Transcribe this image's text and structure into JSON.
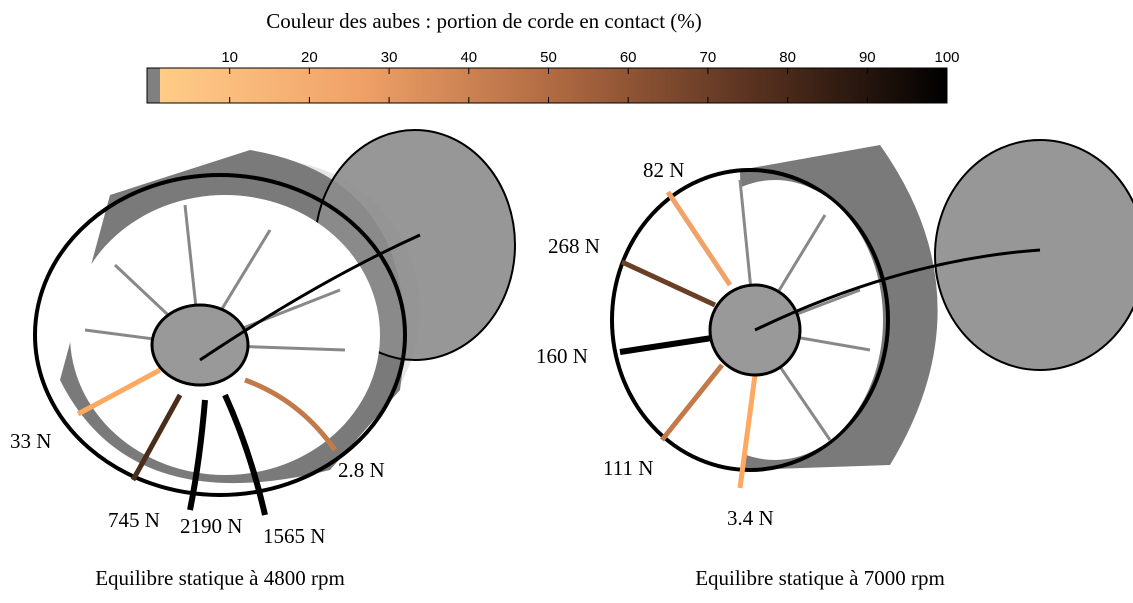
{
  "colorbar": {
    "title": "Couleur des aubes : portion de corde en contact (%)",
    "range": [
      0,
      100
    ],
    "ticks": [
      10,
      20,
      30,
      40,
      50,
      60,
      70,
      80,
      90,
      100
    ]
  },
  "panels": [
    {
      "caption": "Equilibre statique à 4800 rpm",
      "labels": [
        "33 N",
        "745 N",
        "2190 N",
        "1565 N",
        "2.8 N"
      ]
    },
    {
      "caption": "Equilibre statique à 7000 rpm",
      "labels": [
        "82 N",
        "268 N",
        "160 N",
        "111 N",
        "3.4 N"
      ]
    }
  ]
}
